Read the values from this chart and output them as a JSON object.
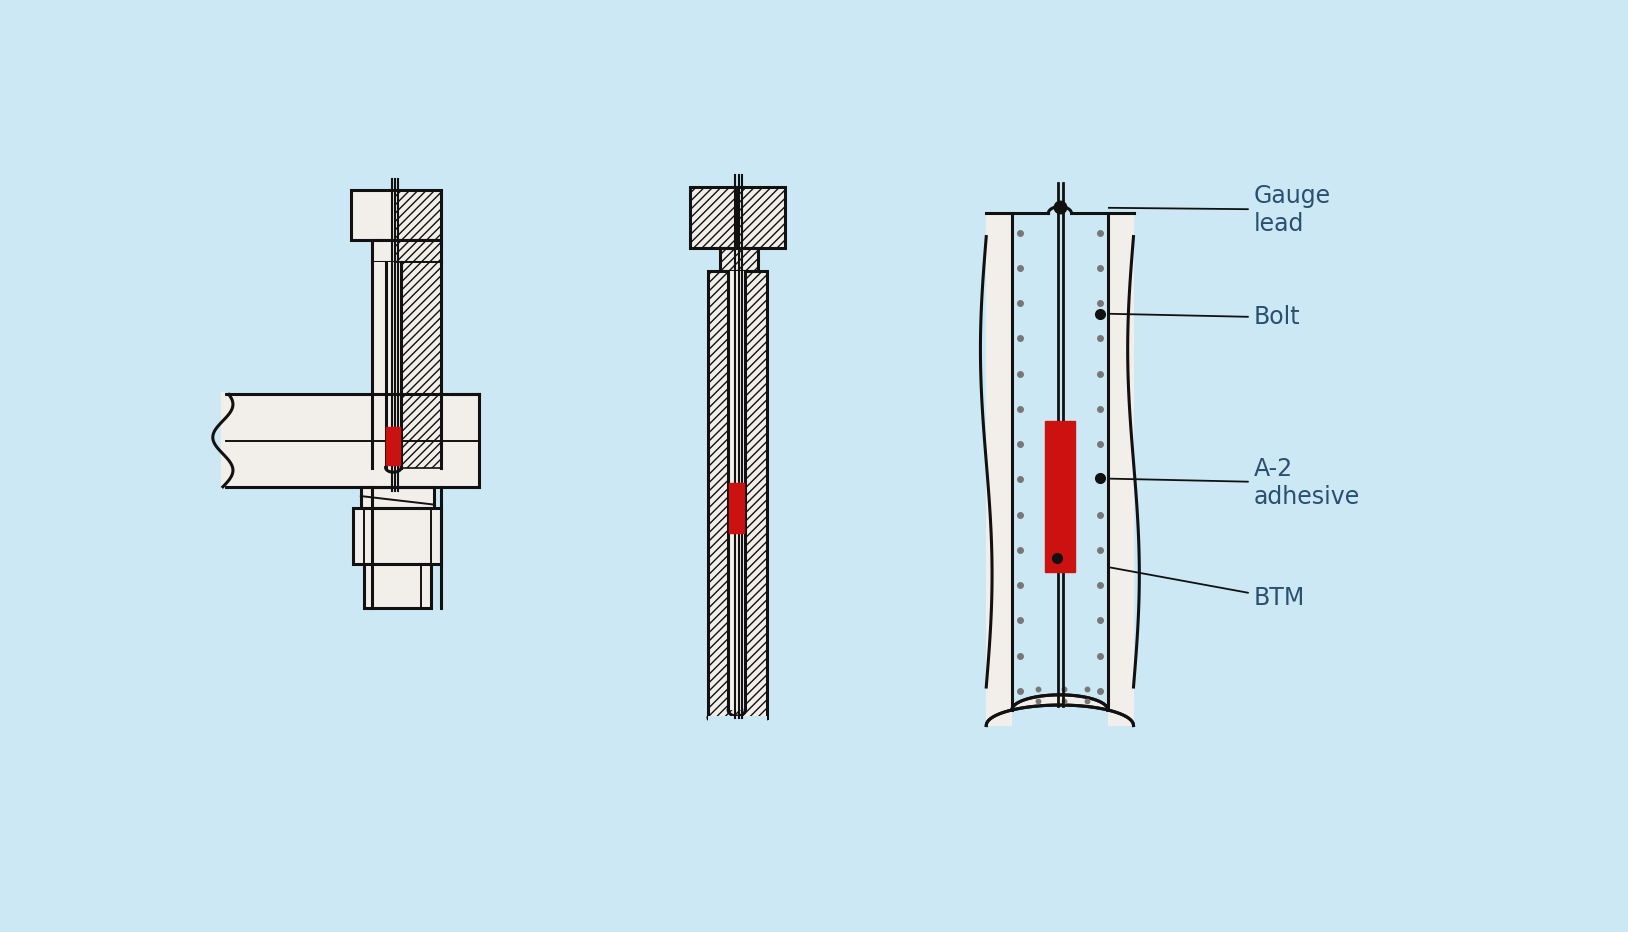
{
  "bg_color": "#cce8f4",
  "line_color": "#111111",
  "red_color": "#cc1111",
  "white_fill": "#f2eeea",
  "inner_fill": "#cce8f4",
  "gray_dot_color": "#777777",
  "text_color": "#2a5070",
  "labels": {
    "gauge_lead": "Gauge\nlead",
    "bolt": "Bolt",
    "a2_adhesive": "A-2\nadhesive",
    "btm": "BTM"
  },
  "label_fontsize": 17,
  "annotation_lw": 1.3,
  "fig_width": 16.28,
  "fig_height": 9.32,
  "fig_dpi": 100
}
